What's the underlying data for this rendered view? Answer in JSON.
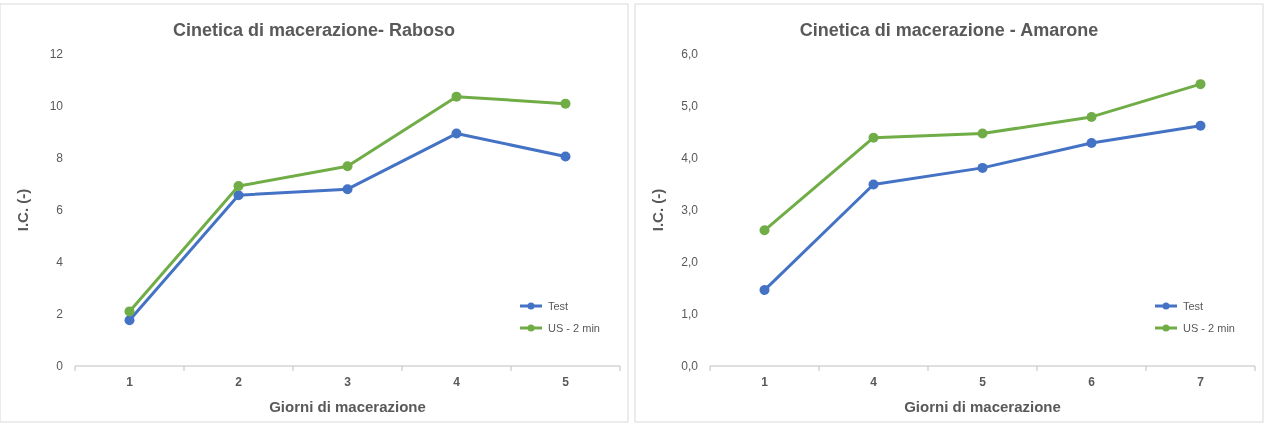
{
  "chart_data": [
    {
      "type": "line",
      "title": "Cinetica di macerazione- Raboso",
      "xlabel": "Giorni di macerazione",
      "ylabel": "I.C. (-)",
      "categories": [
        "1",
        "2",
        "3",
        "4",
        "5"
      ],
      "ylim": [
        0,
        12
      ],
      "yticks": [
        0,
        2,
        4,
        6,
        8,
        10,
        12
      ],
      "grid": false,
      "legend": "bottom right",
      "marker": "circle",
      "line_style": "solid",
      "series": [
        {
          "name": "Test",
          "color": "#4472c4",
          "values": [
            1.76,
            6.57,
            6.8,
            8.94,
            8.06
          ]
        },
        {
          "name": "US - 2 min",
          "color": "#70ad47",
          "values": [
            2.1,
            6.92,
            7.68,
            10.36,
            10.09
          ]
        }
      ]
    },
    {
      "type": "line",
      "title": "Cinetica di macerazione - Amarone",
      "xlabel": "Giorni di macerazione",
      "ylabel": "I.C. (-)",
      "categories": [
        "1",
        "4",
        "5",
        "6",
        "7"
      ],
      "ylim": [
        0,
        6
      ],
      "yticks": [
        {
          "value": 0,
          "label": "0,0"
        },
        {
          "value": 1,
          "label": "1,0"
        },
        {
          "value": 2,
          "label": "2,0"
        },
        {
          "value": 3,
          "label": "3,0"
        },
        {
          "value": 4,
          "label": "4,0"
        },
        {
          "value": 5,
          "label": "5,0"
        },
        {
          "value": 6,
          "label": "6,0"
        }
      ],
      "grid": false,
      "legend": "bottom right",
      "marker": "circle",
      "line_style": "solid",
      "series": [
        {
          "name": "Test",
          "color": "#4472c4",
          "values": [
            1.46,
            3.49,
            3.81,
            4.29,
            4.62
          ]
        },
        {
          "name": "US - 2 min",
          "color": "#70ad47",
          "values": [
            2.61,
            4.39,
            4.47,
            4.79,
            5.42
          ]
        }
      ]
    }
  ]
}
